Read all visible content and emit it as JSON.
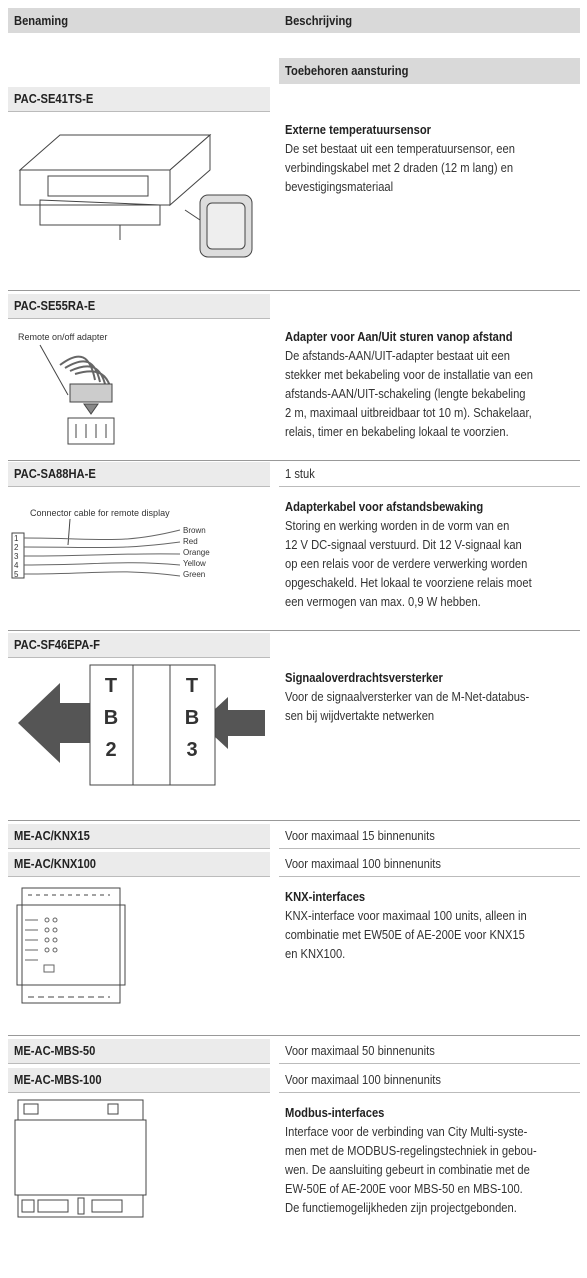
{
  "header": {
    "col1": "Benaming",
    "col2": "Beschrijving"
  },
  "group": "Toebehoren aansturing",
  "items": [
    {
      "names": [
        {
          "name": "PAC-SE41TS-E"
        }
      ],
      "title": "Externe temperatuursensor",
      "lines": [
        "De set bestaat uit een temperatuursensor, een",
        "verbindingskabel met 2 draden (12 m lang) en",
        "bevestigingsmateriaal"
      ]
    },
    {
      "names": [
        {
          "name": "PAC-SE55RA-E"
        }
      ],
      "title": "Adapter voor Aan/Uit sturen vanop afstand",
      "lines": [
        "De afstands-AAN/UIT-adapter bestaat uit een",
        "stekker met bekabeling voor de installatie van een",
        "afstands-AAN/UIT-schakeling (lengte bekabeling",
        "2 m, maximaal uitbreidbaar tot 10 m). Schakelaar,",
        "relais, timer en bekabeling lokaal te voorzien."
      ],
      "figure": {
        "label": "Remote on/off adapter"
      }
    },
    {
      "names": [
        {
          "name": "PAC-SA88HA-E",
          "note": "1 stuk"
        }
      ],
      "title": "Adapterkabel voor afstandsbewaking",
      "lines": [
        "Storing en werking worden in de vorm van en",
        "12 V DC-signaal verstuurd. Dit 12 V-signaal kan",
        "op een relais voor de verdere verwerking worden",
        "opgeschakeld. Het lokaal te voorziene relais moet",
        "een vermogen van max. 0,9 W hebben."
      ],
      "figure": {
        "label": "Connector cable for remote display",
        "pins": [
          "1",
          "2",
          "3",
          "4",
          "5"
        ],
        "wires": [
          "Brown",
          "Red",
          "Orange",
          "Yellow",
          "Green"
        ]
      }
    },
    {
      "names": [
        {
          "name": "PAC-SF46EPA-F"
        }
      ],
      "title": "Signaaloverdrachtsversterker",
      "lines": [
        "Voor de signaalversterker van de M-Net-databus-",
        "sen bij wijdvertakte netwerken"
      ],
      "figure": {
        "left": [
          "T",
          "B",
          "2"
        ],
        "right": [
          "T",
          "B",
          "3"
        ]
      }
    },
    {
      "names": [
        {
          "name": "ME-AC/KNX15",
          "note": "Voor maximaal 15 binnenunits"
        },
        {
          "name": "ME-AC/KNX100",
          "note": "Voor maximaal 100 binnenunits"
        }
      ],
      "title": "KNX-interfaces",
      "lines": [
        "KNX-interface voor maximaal 100 units, alleen in",
        "combinatie met EW50E of AE-200E voor KNX15",
        "en KNX100."
      ]
    },
    {
      "names": [
        {
          "name": "ME-AC-MBS-50",
          "note": "Voor maximaal 50 binnenunits"
        },
        {
          "name": "ME-AC-MBS-100",
          "note": "Voor maximaal 100 binnenunits"
        }
      ],
      "title": "Modbus-interfaces",
      "lines": [
        "Interface voor de verbinding van City Multi-syste-",
        "men met de MODBUS-regelingstechniek in gebou-",
        "wen. De aansluiting gebeurt in combinatie met de",
        "EW-50E of AE-200E voor MBS-50 en MBS-100.",
        "De functiemogelijkheden zijn projectgebonden."
      ]
    }
  ]
}
